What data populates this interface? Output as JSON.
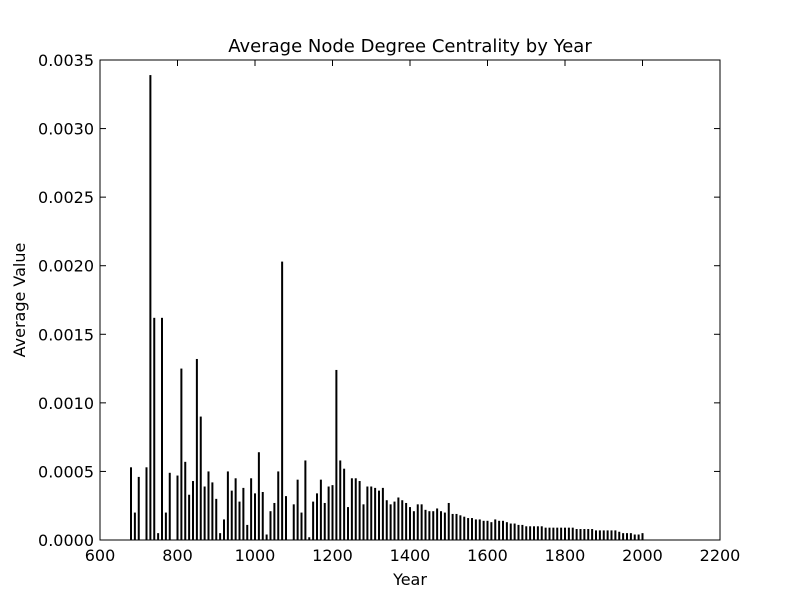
{
  "chart_data": {
    "type": "bar",
    "title": "Average Node Degree Centrality by Year",
    "xlabel": "Year",
    "ylabel": "Average Value",
    "xlim": [
      600,
      2200
    ],
    "ylim": [
      0,
      0.0035
    ],
    "xticks": [
      "600",
      "800",
      "1000",
      "1200",
      "1400",
      "1600",
      "1800",
      "2000",
      "2200"
    ],
    "yticks": [
      "0.0000",
      "0.0005",
      "0.0010",
      "0.0015",
      "0.0020",
      "0.0025",
      "0.0030",
      "0.0035"
    ],
    "grid": false,
    "bar_color": "#000000",
    "data": [
      [
        680,
        0.00053
      ],
      [
        690,
        0.0002
      ],
      [
        700,
        0.00046
      ],
      [
        720,
        0.00053
      ],
      [
        730,
        0.00339
      ],
      [
        740,
        0.00162
      ],
      [
        750,
        5e-05
      ],
      [
        760,
        0.00162
      ],
      [
        770,
        0.0002
      ],
      [
        780,
        0.00049
      ],
      [
        800,
        0.00047
      ],
      [
        810,
        0.00125
      ],
      [
        820,
        0.00057
      ],
      [
        830,
        0.00033
      ],
      [
        840,
        0.00043
      ],
      [
        850,
        0.00132
      ],
      [
        860,
        0.0009
      ],
      [
        870,
        0.00039
      ],
      [
        880,
        0.0005
      ],
      [
        890,
        0.00042
      ],
      [
        900,
        0.0003
      ],
      [
        910,
        5e-05
      ],
      [
        920,
        0.00015
      ],
      [
        930,
        0.0005
      ],
      [
        940,
        0.00036
      ],
      [
        950,
        0.00045
      ],
      [
        960,
        0.00028
      ],
      [
        970,
        0.00038
      ],
      [
        980,
        0.00011
      ],
      [
        990,
        0.00045
      ],
      [
        1000,
        0.00034
      ],
      [
        1010,
        0.00064
      ],
      [
        1020,
        0.00035
      ],
      [
        1030,
        4e-05
      ],
      [
        1040,
        0.00021
      ],
      [
        1050,
        0.00027
      ],
      [
        1060,
        0.0005
      ],
      [
        1070,
        0.00203
      ],
      [
        1080,
        0.00032
      ],
      [
        1100,
        0.00026
      ],
      [
        1110,
        0.00044
      ],
      [
        1120,
        0.0002
      ],
      [
        1130,
        0.00058
      ],
      [
        1140,
        2e-05
      ],
      [
        1150,
        0.00028
      ],
      [
        1160,
        0.00034
      ],
      [
        1170,
        0.00044
      ],
      [
        1180,
        0.00027
      ],
      [
        1190,
        0.00039
      ],
      [
        1200,
        0.0004
      ],
      [
        1210,
        0.00124
      ],
      [
        1220,
        0.00058
      ],
      [
        1230,
        0.00052
      ],
      [
        1240,
        0.00024
      ],
      [
        1250,
        0.00045
      ],
      [
        1260,
        0.00045
      ],
      [
        1270,
        0.00043
      ],
      [
        1280,
        0.00026
      ],
      [
        1290,
        0.00039
      ],
      [
        1300,
        0.00039
      ],
      [
        1310,
        0.00038
      ],
      [
        1320,
        0.00036
      ],
      [
        1330,
        0.00038
      ],
      [
        1340,
        0.00029
      ],
      [
        1350,
        0.00026
      ],
      [
        1360,
        0.00028
      ],
      [
        1370,
        0.00031
      ],
      [
        1380,
        0.00029
      ],
      [
        1390,
        0.00027
      ],
      [
        1400,
        0.00024
      ],
      [
        1410,
        0.00021
      ],
      [
        1420,
        0.00026
      ],
      [
        1430,
        0.00026
      ],
      [
        1440,
        0.00022
      ],
      [
        1450,
        0.00021
      ],
      [
        1460,
        0.00021
      ],
      [
        1470,
        0.00023
      ],
      [
        1480,
        0.00021
      ],
      [
        1490,
        0.0002
      ],
      [
        1500,
        0.00027
      ],
      [
        1510,
        0.00019
      ],
      [
        1520,
        0.00019
      ],
      [
        1530,
        0.00018
      ],
      [
        1540,
        0.00017
      ],
      [
        1550,
        0.00016
      ],
      [
        1560,
        0.00016
      ],
      [
        1570,
        0.00015
      ],
      [
        1580,
        0.00015
      ],
      [
        1590,
        0.00014
      ],
      [
        1600,
        0.00014
      ],
      [
        1610,
        0.00013
      ],
      [
        1620,
        0.00015
      ],
      [
        1630,
        0.00014
      ],
      [
        1640,
        0.00014
      ],
      [
        1650,
        0.00013
      ],
      [
        1660,
        0.00012
      ],
      [
        1670,
        0.00012
      ],
      [
        1680,
        0.00011
      ],
      [
        1690,
        0.00011
      ],
      [
        1700,
        0.0001
      ],
      [
        1710,
        0.0001
      ],
      [
        1720,
        0.0001
      ],
      [
        1730,
        0.0001
      ],
      [
        1740,
        0.0001
      ],
      [
        1750,
        9e-05
      ],
      [
        1760,
        9e-05
      ],
      [
        1770,
        9e-05
      ],
      [
        1780,
        9e-05
      ],
      [
        1790,
        9e-05
      ],
      [
        1800,
        9e-05
      ],
      [
        1810,
        9e-05
      ],
      [
        1820,
        9e-05
      ],
      [
        1830,
        8e-05
      ],
      [
        1840,
        8e-05
      ],
      [
        1850,
        8e-05
      ],
      [
        1860,
        8e-05
      ],
      [
        1870,
        8e-05
      ],
      [
        1880,
        7e-05
      ],
      [
        1890,
        7e-05
      ],
      [
        1900,
        7e-05
      ],
      [
        1910,
        7e-05
      ],
      [
        1920,
        7e-05
      ],
      [
        1930,
        7e-05
      ],
      [
        1940,
        6e-05
      ],
      [
        1950,
        5e-05
      ],
      [
        1960,
        5e-05
      ],
      [
        1970,
        5e-05
      ],
      [
        1980,
        4e-05
      ],
      [
        1990,
        4e-05
      ],
      [
        2000,
        5e-05
      ]
    ]
  }
}
